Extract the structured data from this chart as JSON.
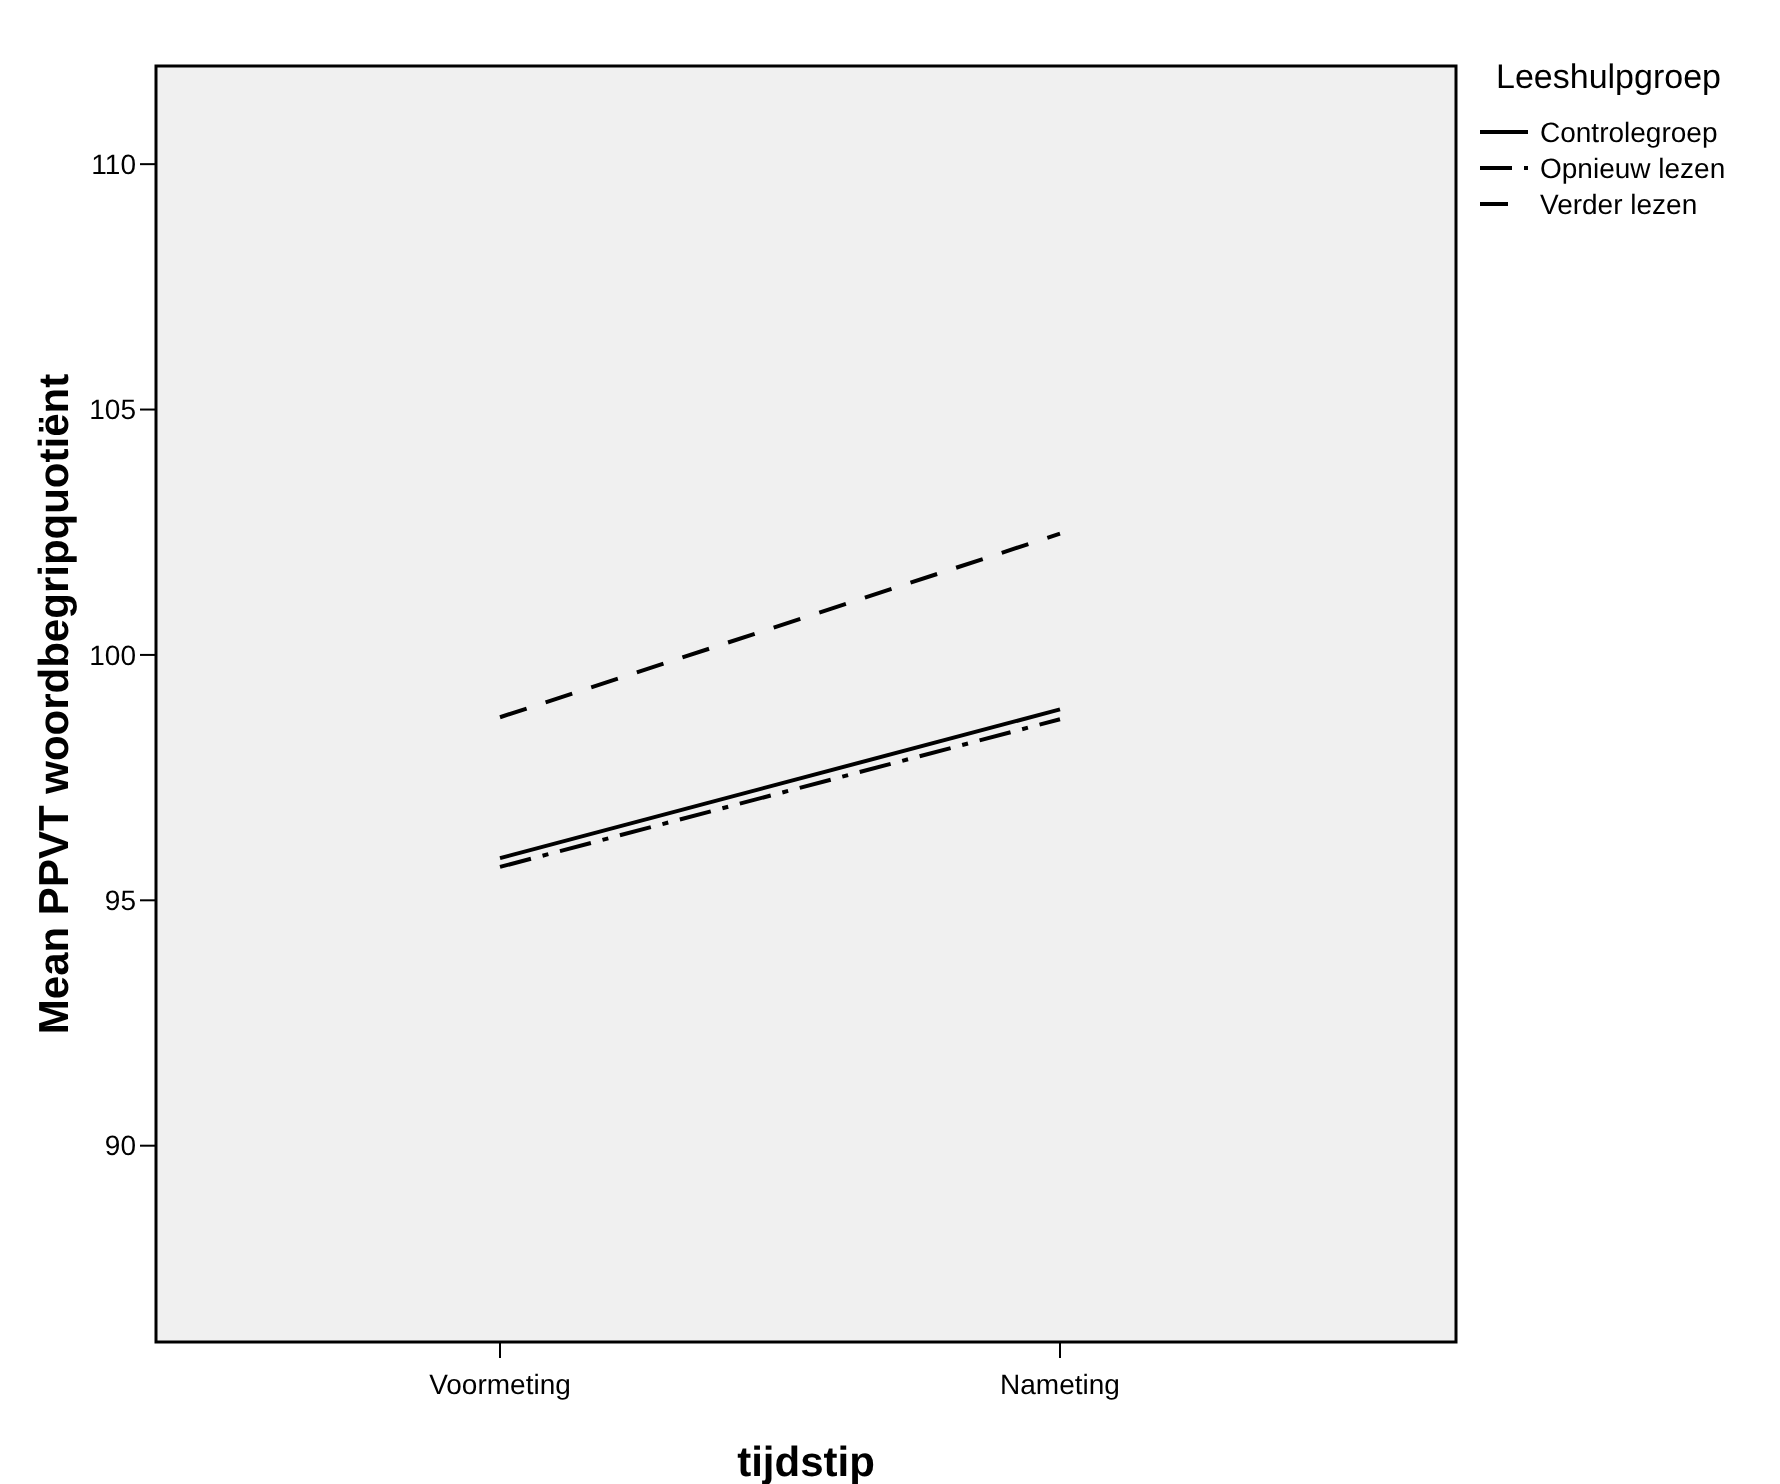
{
  "chart_data": {
    "type": "line",
    "xlabel": "tijdstip",
    "ylabel": "Mean PPVT woordbegripquotiënt",
    "legend_title": "Leeshulpgroep",
    "legend": "top right",
    "marker": "none",
    "grid": false,
    "categories": [
      "Voormeting",
      "Nameting"
    ],
    "ylim": [
      86,
      112
    ],
    "yticks": [
      90,
      95,
      100,
      105,
      110
    ],
    "series": [
      {
        "name": "Controlegroep",
        "color": "#000000",
        "line_style": "solid",
        "values": [
          95.86,
          98.89
        ]
      },
      {
        "name": "Opnieuw lezen",
        "color": "#000000",
        "line_style": "dashdot",
        "values": [
          95.68,
          98.69
        ]
      },
      {
        "name": "Verder lezen",
        "color": "#000000",
        "line_style": "dashed",
        "values": [
          98.73,
          102.47
        ]
      }
    ]
  }
}
